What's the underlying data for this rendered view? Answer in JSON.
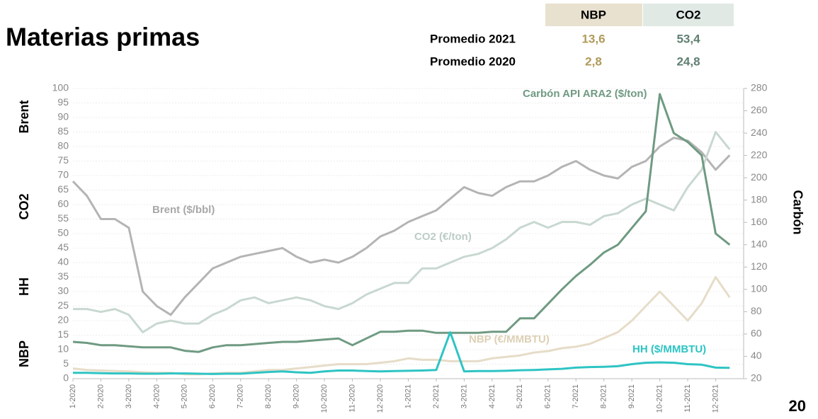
{
  "title": "Materias primas",
  "page_number": "20",
  "table": {
    "header": [
      "NBP",
      "CO2"
    ],
    "rows": [
      [
        "Promedio 2021",
        "13,6",
        "53,4"
      ],
      [
        "Promedio 2020",
        "2,8",
        "24,8"
      ]
    ]
  },
  "chart_data": {
    "type": "line",
    "side_labels": [
      "Brent",
      "CO2",
      "HH",
      "NBP"
    ],
    "y2label": "Carbón",
    "categories": [
      "1-2020",
      null,
      "2-2020",
      null,
      "3-2020",
      null,
      "4-2020",
      null,
      "5-2020",
      null,
      "6-2020",
      null,
      "7-2020",
      null,
      "8-2020",
      null,
      "9-2020",
      null,
      "10-2020",
      null,
      "11-2020",
      null,
      "12-2020",
      null,
      "1-2021",
      null,
      "2-2021",
      null,
      "3-2021",
      null,
      "4-2021",
      null,
      "5-2021",
      null,
      "6-2021",
      null,
      "7-2021",
      null,
      "8-2021",
      null,
      "9-2021",
      null,
      "10-2021",
      null,
      "11-2021",
      null,
      "12-2021",
      null
    ],
    "ylim": [
      0,
      100
    ],
    "yticks": [
      0,
      5,
      10,
      15,
      20,
      25,
      30,
      35,
      40,
      45,
      50,
      55,
      60,
      65,
      70,
      75,
      80,
      85,
      90,
      95,
      100
    ],
    "y2lim": [
      20,
      280
    ],
    "y2ticks": [
      20,
      40,
      60,
      80,
      100,
      120,
      140,
      160,
      180,
      200,
      220,
      240,
      260,
      280
    ],
    "grid": true,
    "series": [
      {
        "name": "Brent ($/bbl)",
        "color": "#b4b4b4",
        "values": [
          68,
          63,
          55,
          55,
          52,
          30,
          25,
          22,
          28,
          33,
          38,
          40,
          42,
          43,
          44,
          45,
          42,
          40,
          41,
          40,
          42,
          45,
          49,
          51,
          54,
          56,
          58,
          62,
          66,
          64,
          63,
          66,
          68,
          68,
          70,
          73,
          75,
          72,
          70,
          69,
          73,
          75,
          80,
          83,
          82,
          78,
          72,
          77
        ]
      },
      {
        "name": "CO2 (€/ton)",
        "color": "#c8d8d0",
        "values": [
          24,
          24,
          23,
          24,
          22,
          16,
          19,
          20,
          19,
          19,
          22,
          24,
          27,
          28,
          26,
          27,
          28,
          27,
          25,
          24,
          26,
          29,
          31,
          33,
          33,
          38,
          38,
          40,
          42,
          43,
          45,
          48,
          52,
          54,
          52,
          54,
          54,
          53,
          56,
          57,
          60,
          62,
          60,
          58,
          66,
          72,
          85,
          79
        ]
      },
      {
        "name": "Carbón API ARA2 ($/ton)",
        "color": "#6f9a82",
        "axis": "y2",
        "values": [
          53,
          52,
          50,
          50,
          49,
          48,
          48,
          48,
          45,
          44,
          48,
          50,
          50,
          51,
          52,
          53,
          53,
          54,
          55,
          56,
          50,
          56,
          62,
          62,
          63,
          63,
          61,
          61,
          61,
          61,
          62,
          62,
          74,
          74,
          87,
          100,
          112,
          122,
          133,
          140,
          155,
          170,
          275,
          240,
          232,
          220,
          150,
          140
        ]
      },
      {
        "name": "NBP (€/MMBTU)",
        "color": "#e6dcc8",
        "values": [
          3.5,
          3,
          2.8,
          2.6,
          2.5,
          2.2,
          2,
          2,
          1.5,
          1.5,
          1.8,
          2,
          2,
          2.5,
          3,
          3,
          3.5,
          4,
          4.5,
          5,
          5,
          5,
          5.5,
          6,
          7,
          6.5,
          6.5,
          6,
          6,
          6,
          7,
          7.5,
          8,
          9,
          9.5,
          10.5,
          11,
          12,
          14,
          16,
          20,
          25,
          30,
          25,
          20,
          26,
          35,
          28
        ]
      },
      {
        "name": "HH ($/MMBTU)",
        "color": "#2ec4c4",
        "values": [
          2,
          2,
          1.9,
          1.8,
          1.8,
          1.7,
          1.7,
          1.8,
          1.8,
          1.7,
          1.6,
          1.7,
          1.7,
          2,
          2.3,
          2.5,
          2.2,
          2,
          2.5,
          2.8,
          2.8,
          2.6,
          2.5,
          2.6,
          2.7,
          2.8,
          3,
          16,
          2.5,
          2.6,
          2.6,
          2.7,
          2.9,
          3,
          3.2,
          3.4,
          3.8,
          4,
          4.1,
          4.3,
          5,
          5.5,
          5.6,
          5.5,
          5,
          4.8,
          3.8,
          3.7
        ]
      }
    ]
  }
}
